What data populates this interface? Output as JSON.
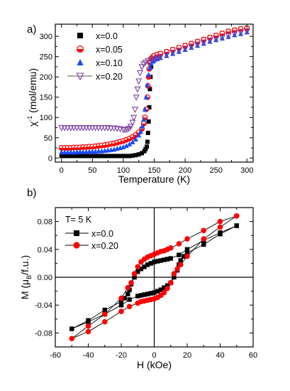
{
  "chart_data": [
    {
      "panel_label": "a)",
      "type": "scatter",
      "xlabel": "Temperature (K)",
      "ylabel_main": "χ",
      "ylabel_sup": "-1",
      "ylabel_tail": " (mol/emu)",
      "xlim": [
        -10,
        310
      ],
      "ylim": [
        -10,
        330
      ],
      "xticks": [
        0,
        50,
        100,
        150,
        200,
        250,
        300
      ],
      "yticks": [
        0,
        50,
        100,
        150,
        200,
        250,
        300
      ],
      "legend_position": "top-left",
      "series": [
        {
          "name": "x=0.0",
          "marker": "square",
          "color": "#000000",
          "fill": "#000000",
          "x": [
            0,
            5,
            10,
            15,
            20,
            25,
            30,
            35,
            40,
            45,
            50,
            55,
            60,
            65,
            70,
            75,
            80,
            85,
            90,
            95,
            100,
            105,
            110,
            115,
            120,
            125,
            130,
            134,
            136,
            138,
            139,
            140,
            141,
            142,
            143,
            144,
            145,
            146,
            148,
            150,
            155,
            160,
            170,
            180,
            190,
            200,
            210,
            220,
            230,
            240,
            250,
            260,
            270,
            280,
            290,
            300
          ],
          "y": [
            5,
            5,
            5,
            5,
            5,
            5,
            5,
            5,
            5,
            5,
            5,
            5,
            5,
            5,
            5,
            5,
            5,
            5,
            5,
            5,
            5,
            5,
            5,
            6,
            7,
            9,
            12,
            17,
            22,
            28,
            40,
            62,
            90,
            125,
            170,
            200,
            225,
            240,
            250,
            253,
            256,
            258,
            263,
            268,
            273,
            278,
            283,
            288,
            293,
            298,
            303,
            308,
            313,
            316,
            319,
            321
          ]
        },
        {
          "name": "x=0.05",
          "marker": "half-circle",
          "color": "#ff0000",
          "fill": "#ff0000",
          "x": [
            0,
            5,
            10,
            15,
            20,
            25,
            30,
            35,
            40,
            45,
            50,
            55,
            60,
            65,
            70,
            75,
            80,
            85,
            90,
            95,
            100,
            105,
            110,
            115,
            120,
            125,
            130,
            133,
            135,
            137,
            139,
            140,
            141,
            142,
            143,
            145,
            148,
            150,
            155,
            160,
            170,
            180,
            190,
            200,
            210,
            220,
            230,
            240,
            250,
            260,
            270,
            280,
            290,
            300
          ],
          "y": [
            25,
            25,
            25,
            25,
            26,
            26,
            26,
            27,
            27,
            28,
            28,
            29,
            30,
            31,
            32,
            33,
            35,
            36,
            38,
            40,
            42,
            45,
            48,
            52,
            57,
            63,
            72,
            85,
            100,
            120,
            150,
            178,
            200,
            220,
            235,
            245,
            250,
            252,
            255,
            257,
            262,
            267,
            272,
            277,
            282,
            287,
            292,
            297,
            302,
            307,
            312,
            315,
            318,
            320
          ]
        },
        {
          "name": "x=0.10",
          "marker": "triangle",
          "color": "#1a4bff",
          "fill": "#1a4bff",
          "x": [
            0,
            5,
            10,
            15,
            20,
            25,
            30,
            35,
            40,
            45,
            50,
            55,
            60,
            65,
            70,
            75,
            80,
            85,
            90,
            95,
            100,
            105,
            110,
            115,
            120,
            125,
            128,
            131,
            133,
            135,
            137,
            139,
            141,
            143,
            145,
            148,
            150,
            155,
            160,
            170,
            180,
            190,
            200,
            210,
            220,
            230,
            240,
            250,
            260,
            270,
            280,
            290,
            300
          ],
          "y": [
            14,
            14,
            14,
            14,
            14,
            15,
            15,
            15,
            15,
            16,
            16,
            16,
            17,
            17,
            18,
            19,
            20,
            21,
            23,
            25,
            27,
            30,
            34,
            39,
            46,
            56,
            65,
            78,
            95,
            120,
            150,
            180,
            205,
            222,
            232,
            238,
            241,
            244,
            247,
            252,
            257,
            262,
            267,
            272,
            277,
            282,
            287,
            291,
            295,
            299,
            303,
            306,
            310
          ]
        },
        {
          "name": "x=0.20",
          "marker": "triangle-down-open",
          "color": "#7b3fa0",
          "fill": "none",
          "x": [
            0,
            5,
            10,
            15,
            20,
            25,
            30,
            35,
            40,
            45,
            50,
            55,
            60,
            65,
            70,
            75,
            80,
            85,
            90,
            95,
            100,
            103,
            106,
            109,
            112,
            115,
            117,
            119,
            121,
            123,
            125,
            127,
            130,
            133,
            136,
            140,
            145,
            150,
            155,
            160,
            170,
            180,
            190,
            200,
            210,
            220,
            230,
            240,
            250,
            260,
            270,
            280,
            290,
            300
          ],
          "y": [
            75,
            75,
            75,
            75,
            75,
            75,
            75,
            75,
            75,
            75,
            75,
            75,
            75,
            75,
            75,
            75,
            74,
            74,
            73,
            72,
            70,
            70,
            71,
            73,
            78,
            88,
            100,
            120,
            150,
            170,
            190,
            210,
            225,
            232,
            236,
            240,
            243,
            245,
            247,
            250,
            255,
            260,
            265,
            270,
            275,
            280,
            285,
            290,
            294,
            298,
            302,
            306,
            310,
            313
          ]
        }
      ]
    },
    {
      "panel_label": "b)",
      "type": "line",
      "annotation": "T= 5 K",
      "xlabel": "H (kOe)",
      "ylabel_main": "M (μ",
      "ylabel_sub": "B",
      "ylabel_tail": "/f.u.)",
      "xlim": [
        -60,
        60
      ],
      "ylim": [
        -0.1,
        0.1
      ],
      "xticks": [
        -60,
        -40,
        -20,
        0,
        20,
        40,
        60
      ],
      "yticks": [
        -0.08,
        -0.04,
        0.0,
        0.04,
        0.08
      ],
      "ytick_labels": [
        "-0.08",
        "-0.04",
        "0.00",
        "0.04",
        "0.08"
      ],
      "grid": false,
      "zero_lines": true,
      "legend_position": "top-left",
      "series": [
        {
          "name": "x=0.0",
          "marker": "square",
          "color": "#000000",
          "x": [
            50,
            40,
            30,
            20,
            15,
            10,
            8,
            6,
            4,
            2,
            0,
            -2,
            -4,
            -6,
            -8,
            -10,
            -12,
            -14,
            -15,
            -16,
            -18,
            -20,
            -30,
            -40,
            -50,
            -40,
            -30,
            -20,
            -15,
            -10,
            -8,
            -6,
            -4,
            -2,
            0,
            2,
            4,
            6,
            8,
            10,
            12,
            14,
            15,
            16,
            18,
            20,
            30,
            40,
            50
          ],
          "y": [
            0.074,
            0.064,
            0.053,
            0.04,
            0.032,
            0.027,
            0.026,
            0.025,
            0.024,
            0.023,
            0.022,
            0.02,
            0.018,
            0.015,
            0.012,
            0.008,
            0.0,
            -0.01,
            -0.018,
            -0.024,
            -0.03,
            -0.035,
            -0.047,
            -0.062,
            -0.074,
            -0.064,
            -0.053,
            -0.04,
            -0.032,
            -0.027,
            -0.026,
            -0.025,
            -0.024,
            -0.023,
            -0.022,
            -0.02,
            -0.018,
            -0.015,
            -0.012,
            -0.008,
            0.0,
            0.01,
            0.018,
            0.024,
            0.03,
            0.035,
            0.047,
            0.062,
            0.074
          ]
        },
        {
          "name": "x=0.20",
          "marker": "circle",
          "color": "#ff0000",
          "x": [
            50,
            40,
            30,
            20,
            15,
            10,
            8,
            6,
            4,
            2,
            0,
            -2,
            -4,
            -6,
            -8,
            -10,
            -12,
            -14,
            -16,
            -20,
            -30,
            -40,
            -50,
            -40,
            -30,
            -20,
            -15,
            -10,
            -8,
            -6,
            -4,
            -2,
            0,
            2,
            4,
            6,
            8,
            10,
            12,
            14,
            16,
            20,
            30,
            40,
            50
          ],
          "y": [
            0.088,
            0.08,
            0.067,
            0.055,
            0.048,
            0.042,
            0.04,
            0.038,
            0.037,
            0.035,
            0.033,
            0.031,
            0.029,
            0.026,
            0.022,
            0.015,
            0.005,
            -0.008,
            -0.015,
            -0.03,
            -0.053,
            -0.07,
            -0.088,
            -0.078,
            -0.064,
            -0.049,
            -0.042,
            -0.037,
            -0.035,
            -0.034,
            -0.033,
            -0.032,
            -0.031,
            -0.029,
            -0.026,
            -0.022,
            -0.016,
            -0.008,
            0.005,
            0.012,
            0.018,
            0.03,
            0.055,
            0.072,
            0.088
          ]
        }
      ]
    }
  ]
}
